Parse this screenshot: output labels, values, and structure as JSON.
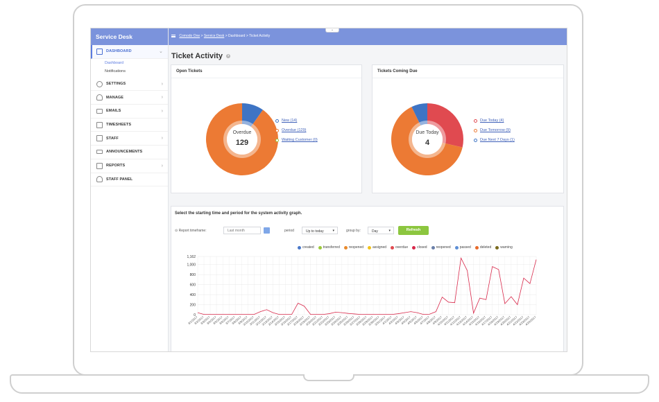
{
  "sidebar": {
    "title": "Service Desk",
    "items": [
      {
        "label": "DASHBOARD",
        "arrow": "⌄"
      },
      {
        "label": "SETTINGS",
        "arrow": "›"
      },
      {
        "label": "MANAGE",
        "arrow": "›"
      },
      {
        "label": "EMAILS",
        "arrow": "›"
      },
      {
        "label": "TIMESHEETS",
        "arrow": ""
      },
      {
        "label": "STAFF",
        "arrow": "›"
      },
      {
        "label": "ANNOUNCEMENTS",
        "arrow": ""
      },
      {
        "label": "REPORTS",
        "arrow": "›"
      },
      {
        "label": "STAFF PANEL",
        "arrow": ""
      }
    ],
    "subitems": [
      "Dashboard",
      "Notifications"
    ]
  },
  "breadcrumb": {
    "item1": "Comodo One",
    "item2": "Service Desk",
    "item3": "Dashboard",
    "item4": "Ticket Activity",
    "sep": ">"
  },
  "page": {
    "title": "Ticket Activity"
  },
  "open_tickets": {
    "title": "Open Tickets",
    "center_label": "Overdue",
    "center_value": "129",
    "legend": [
      {
        "label": "New (14)",
        "color": "#3e74c4"
      },
      {
        "label": "Overdue (129)",
        "color": "#ec7a34"
      },
      {
        "label": "Waiting Customer (0)",
        "color": "#9cbf3b"
      }
    ],
    "slices": [
      {
        "label": "New",
        "value": 14,
        "color": "#3e74c4"
      },
      {
        "label": "Overdue",
        "value": 129,
        "color": "#ec7a34"
      }
    ]
  },
  "coming_due": {
    "title": "Tickets Coming Due",
    "center_label": "Due Today",
    "center_value": "4",
    "legend": [
      {
        "label": "Due Today (4)",
        "color": "#e04a50"
      },
      {
        "label": "Due Tomorrow (9)",
        "color": "#ec7a34"
      },
      {
        "label": "Due Next 7 Days (1)",
        "color": "#3e74c4"
      }
    ],
    "slices": [
      {
        "label": "Due Today",
        "value": 4,
        "color": "#e04a50"
      },
      {
        "label": "Due Tomorrow",
        "value": 9,
        "color": "#ec7a34"
      },
      {
        "label": "Due Next 7 Days",
        "value": 1,
        "color": "#3e74c4"
      }
    ]
  },
  "activity": {
    "title": "Select the starting time and period for the system activity graph.",
    "timeframe_label": "Report timeframe:",
    "timeframe_placeholder": "Last month",
    "period_label": "period",
    "period_value": "Up to today",
    "group_label": "group by:",
    "group_value": "Day",
    "refresh_label": "Refresh",
    "legend": [
      {
        "label": "created",
        "color": "#4a78c9"
      },
      {
        "label": "transferred",
        "color": "#9cc93b"
      },
      {
        "label": "reopened",
        "color": "#e98a2c"
      },
      {
        "label": "assigned",
        "color": "#f2c21a"
      },
      {
        "label": "overdue",
        "color": "#e04a50"
      },
      {
        "label": "closed",
        "color": "#d8284a"
      },
      {
        "label": "reopened",
        "color": "#6a7fa8"
      },
      {
        "label": "passed",
        "color": "#5d8fd6"
      },
      {
        "label": "deleted",
        "color": "#e86a2a"
      },
      {
        "label": "warning",
        "color": "#7b6b1e"
      }
    ]
  },
  "chart_data": {
    "type": "line",
    "title": "",
    "ylim": [
      0,
      1162
    ],
    "y_ticks": [
      0,
      200,
      400,
      600,
      800,
      1000,
      1162
    ],
    "y_tick_labels": [
      "0",
      "200",
      "400",
      "600",
      "800",
      "1,000",
      "1,162"
    ],
    "x": [
      "3/1/2017",
      "3/2/2017",
      "3/3/2017",
      "3/4/2017",
      "3/5/2017",
      "3/6/2017",
      "3/7/2017",
      "3/8/2017",
      "3/9/2017",
      "3/10/2017",
      "3/11/2017",
      "3/12/2017",
      "3/13/2017",
      "3/14/2017",
      "3/15/2017",
      "3/16/2017",
      "3/17/2017",
      "3/18/2017",
      "3/19/2017",
      "3/20/2017",
      "3/21/2017",
      "3/22/2017",
      "3/23/2017",
      "3/24/2017",
      "3/25/2017",
      "3/26/2017",
      "3/27/2017",
      "3/28/2017",
      "3/29/2017",
      "3/30/2017",
      "3/31/2017",
      "4/1/2017",
      "4/2/2017",
      "4/3/2017",
      "4/4/2017",
      "4/5/2017",
      "4/6/2017",
      "4/7/2017",
      "4/8/2017",
      "4/9/2017",
      "4/10/2017",
      "4/11/2017",
      "4/12/2017",
      "4/13/2017",
      "4/14/2017",
      "4/15/2017",
      "4/16/2017",
      "4/17/2017",
      "4/18/2017",
      "4/19/2017",
      "4/20/2017",
      "4/21/2017",
      "4/22/2017",
      "4/23/2017",
      "4/24/2017"
    ],
    "series": [
      {
        "name": "closed",
        "color": "#d8284a",
        "values": [
          40,
          5,
          5,
          5,
          5,
          5,
          5,
          5,
          5,
          5,
          60,
          100,
          40,
          5,
          5,
          5,
          230,
          170,
          5,
          5,
          5,
          20,
          50,
          40,
          25,
          15,
          5,
          5,
          5,
          5,
          5,
          5,
          20,
          40,
          60,
          40,
          5,
          10,
          60,
          350,
          250,
          240,
          1130,
          880,
          30,
          330,
          300,
          960,
          900,
          220,
          360,
          200,
          730,
          620,
          1100
        ]
      }
    ]
  }
}
